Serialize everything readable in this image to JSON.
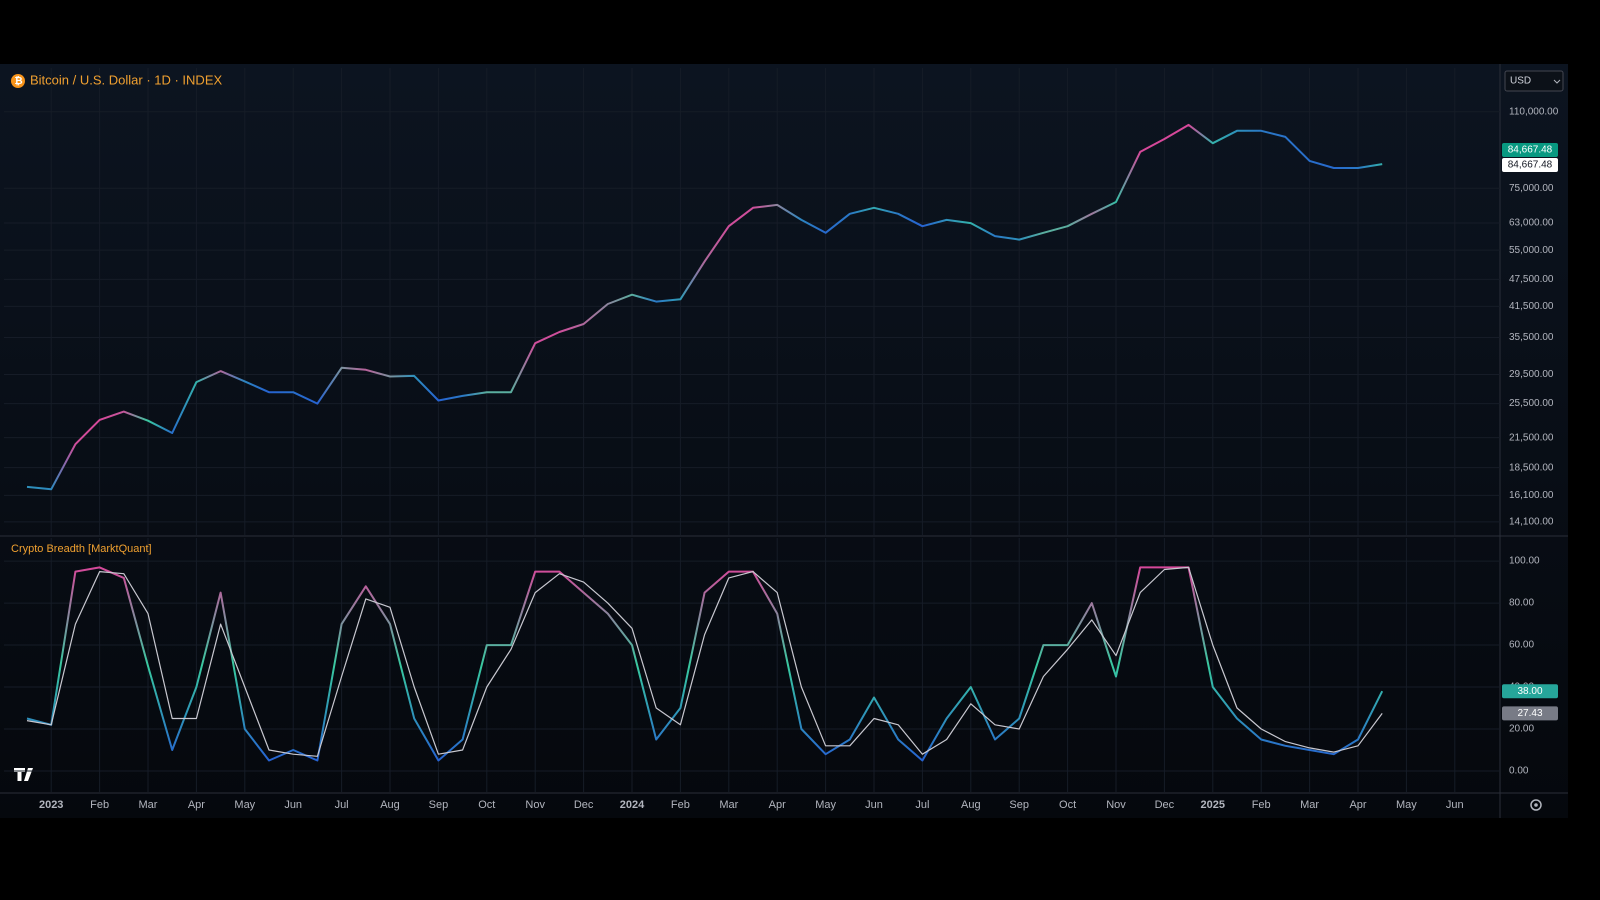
{
  "ui": {
    "currency": "USD"
  },
  "chart_data": {
    "type": "multi-pane",
    "categories": [
      null,
      "2023",
      null,
      "Feb",
      null,
      "Mar",
      null,
      "Apr",
      null,
      "May",
      null,
      "Jun",
      null,
      "Jul",
      null,
      "Aug",
      null,
      "Sep",
      null,
      "Oct",
      null,
      "Nov",
      null,
      "Dec",
      null,
      "2024",
      null,
      "Feb",
      null,
      "Mar",
      null,
      "Apr",
      null,
      "May",
      null,
      "Jun",
      null,
      "Jul",
      null,
      "Aug",
      null,
      "Sep",
      null,
      "Oct",
      null,
      "Nov",
      null,
      "Dec",
      null,
      "2025",
      null,
      "Feb",
      null,
      "Mar",
      null,
      "Apr",
      null,
      "May",
      null,
      "Jun",
      null
    ],
    "color_stops": [
      {
        "at": 0,
        "color": "#2457d6"
      },
      {
        "at": 50,
        "color": "#38c9a0"
      },
      {
        "at": 100,
        "color": "#e0409a"
      }
    ],
    "panes": [
      {
        "type": "line",
        "title": "Bitcoin / U.S. Dollar · 1D · INDEX",
        "log_scale": true,
        "grid": true,
        "ylim": [
          13200,
          137000
        ],
        "yticks": [
          {
            "value": 110000,
            "label": "110,000.00"
          },
          {
            "value": 75000,
            "label": "75,000.00"
          },
          {
            "value": 63000,
            "label": "63,000.00"
          },
          {
            "value": 55000,
            "label": "55,000.00"
          },
          {
            "value": 47500,
            "label": "47,500.00"
          },
          {
            "value": 41500,
            "label": "41,500.00"
          },
          {
            "value": 35500,
            "label": "35,500.00"
          },
          {
            "value": 29500,
            "label": "29,500.00"
          },
          {
            "value": 25500,
            "label": "25,500.00"
          },
          {
            "value": 21500,
            "label": "21,500.00"
          },
          {
            "value": 18500,
            "label": "18,500.00"
          },
          {
            "value": 16100,
            "label": "16,100.00"
          },
          {
            "value": 14100,
            "label": "14,100.00"
          }
        ],
        "series": [
          {
            "values": [
              16800,
              16600,
              20800,
              23500,
              24500,
              23400,
              22000,
              28400,
              30000,
              28500,
              27000,
              27000,
              25500,
              30500,
              30200,
              29200,
              29300,
              25900,
              26500,
              27000,
              27000,
              34500,
              36500,
              38000,
              42000,
              44000,
              42500,
              43000,
              52000,
              62000,
              68000,
              69000,
              64000,
              60000,
              66000,
              68000,
              66000,
              62000,
              64000,
              63000,
              59000,
              58000,
              60000,
              62000,
              66000,
              70000,
              90000,
              96000,
              103000,
              94000,
              100000,
              100000,
              97000,
              86000,
              83000,
              83000,
              84667.48,
              null,
              null,
              null,
              null
            ]
          }
        ],
        "tags": [
          {
            "value": 84667.48,
            "label": "84,667.48",
            "color": "#089981",
            "text_color": "#ffffff"
          },
          {
            "value": 84667.48,
            "label": "84,667.48",
            "color": "#ffffff",
            "text_color": "#131722"
          }
        ]
      },
      {
        "type": "line",
        "title": "Crypto Breadth [MarktQuant]",
        "log_scale": false,
        "grid": true,
        "ylim": [
          -10,
          111
        ],
        "yticks": [
          {
            "value": 0,
            "label": "0.00"
          },
          {
            "value": 20,
            "label": "20.00"
          },
          {
            "value": 40,
            "label": "40.00"
          },
          {
            "value": 60,
            "label": "60.00"
          },
          {
            "value": 80,
            "label": "80.00"
          },
          {
            "value": 100,
            "label": "100.00"
          }
        ],
        "series": [
          {
            "color": "gradient",
            "values": [
              25,
              22,
              95,
              97,
              92,
              50,
              10,
              40,
              85,
              20,
              5,
              10,
              5,
              70,
              88,
              70,
              25,
              5,
              15,
              60,
              60,
              95,
              95,
              85,
              75,
              60,
              15,
              30,
              85,
              95,
              95,
              75,
              20,
              8,
              15,
              35,
              15,
              5,
              25,
              40,
              15,
              25,
              60,
              60,
              80,
              45,
              97,
              97,
              97,
              40,
              25,
              15,
              12,
              10,
              8,
              15,
              38,
              null,
              null,
              null,
              null
            ]
          },
          {
            "color": "#c8c8d0",
            "values": [
              24,
              22,
              70,
              95,
              94,
              75,
              25,
              25,
              70,
              40,
              10,
              8,
              7,
              45,
              82,
              78,
              40,
              8,
              10,
              40,
              58,
              85,
              94,
              90,
              80,
              68,
              30,
              22,
              65,
              92,
              95,
              85,
              40,
              12,
              12,
              25,
              22,
              8,
              15,
              32,
              22,
              20,
              45,
              58,
              72,
              55,
              85,
              96,
              97,
              60,
              30,
              20,
              14,
              11,
              9,
              12,
              27.43,
              null,
              null,
              null,
              null
            ]
          }
        ],
        "tags": [
          {
            "value": 38,
            "label": "38.00",
            "color": "#26a69a",
            "text_color": "#ffffff"
          },
          {
            "value": 27.43,
            "label": "27.43",
            "color": "#787b86",
            "text_color": "#ffffff"
          }
        ]
      }
    ]
  }
}
